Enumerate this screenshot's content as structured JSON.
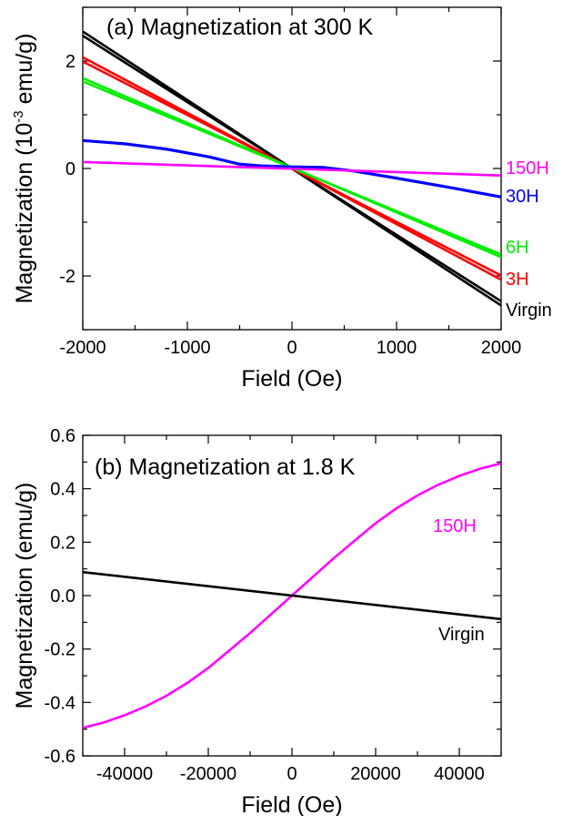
{
  "chart_data": [
    {
      "type": "line",
      "title": "(a) Magnetization at 300 K",
      "xlabel": "Field (Oe)",
      "ylabel_main": "Magnetization (10",
      "ylabel_exp": "-3",
      "ylabel_tail": " emu/g)",
      "xlim": [
        -2000,
        2000
      ],
      "ylim": [
        -3,
        3
      ],
      "xticks": [
        -2000,
        -1000,
        0,
        1000,
        2000
      ],
      "yticks": [
        -2,
        0,
        2
      ],
      "xtick_labels": [
        "-2000",
        "-1000",
        "0",
        "1000",
        "2000"
      ],
      "ytick_labels": [
        "-2",
        "0",
        "2"
      ],
      "series": [
        {
          "name": "Virgin",
          "color": "#000000",
          "loop": true,
          "x": [
            -2000,
            2000
          ],
          "y_up": [
            2.55,
            -2.55
          ],
          "y_down": [
            2.47,
            -2.47
          ]
        },
        {
          "name": "3H",
          "color": "#ff0000",
          "loop": true,
          "x": [
            -2000,
            2000
          ],
          "y_up": [
            2.07,
            -2.07
          ],
          "y_down": [
            1.99,
            -1.99
          ]
        },
        {
          "name": "6H",
          "color": "#00ee00",
          "loop": true,
          "x": [
            -2000,
            2000
          ],
          "y_up": [
            1.68,
            -1.65
          ],
          "y_down": [
            1.62,
            -1.6
          ]
        },
        {
          "name": "30H",
          "color": "#0000ff",
          "loop": false,
          "x": [
            -2000,
            -1600,
            -1200,
            -800,
            -500,
            -300,
            0,
            300,
            600,
            1000,
            1500,
            2000
          ],
          "y": [
            0.52,
            0.46,
            0.36,
            0.22,
            0.08,
            0.05,
            0.03,
            0.02,
            -0.05,
            -0.18,
            -0.35,
            -0.53
          ]
        },
        {
          "name": "150H",
          "color": "#ff00ff",
          "loop": false,
          "x": [
            -2000,
            2000
          ],
          "y": [
            0.12,
            -0.13
          ]
        }
      ]
    },
    {
      "type": "line",
      "title": "(b) Magnetization at 1.8 K",
      "xlabel": "Field (Oe)",
      "ylabel": "Magnetization (emu/g)",
      "xlim": [
        -50000,
        50000
      ],
      "ylim": [
        -0.6,
        0.6
      ],
      "xticks": [
        -40000,
        -20000,
        0,
        20000,
        40000
      ],
      "yticks": [
        -0.6,
        -0.4,
        -0.2,
        0.0,
        0.2,
        0.4,
        0.6
      ],
      "xtick_labels": [
        "-40000",
        "-20000",
        "0",
        "20000",
        "40000"
      ],
      "ytick_labels": [
        "-0.6",
        "-0.4",
        "-0.2",
        "0.0",
        "0.2",
        "0.4",
        "0.6"
      ],
      "series": [
        {
          "name": "150H",
          "color": "#ff00ff",
          "x": [
            -50000,
            -45000,
            -40000,
            -35000,
            -30000,
            -25000,
            -20000,
            -15000,
            -10000,
            -5000,
            0,
            5000,
            10000,
            15000,
            20000,
            25000,
            30000,
            35000,
            40000,
            45000,
            50000
          ],
          "y": [
            -0.495,
            -0.475,
            -0.448,
            -0.415,
            -0.375,
            -0.327,
            -0.271,
            -0.206,
            -0.14,
            -0.07,
            0.0,
            0.07,
            0.14,
            0.206,
            0.271,
            0.327,
            0.375,
            0.415,
            0.448,
            0.475,
            0.495
          ]
        },
        {
          "name": "Virgin",
          "color": "#000000",
          "x": [
            -50000,
            50000
          ],
          "y": [
            0.088,
            -0.088
          ]
        }
      ]
    }
  ]
}
